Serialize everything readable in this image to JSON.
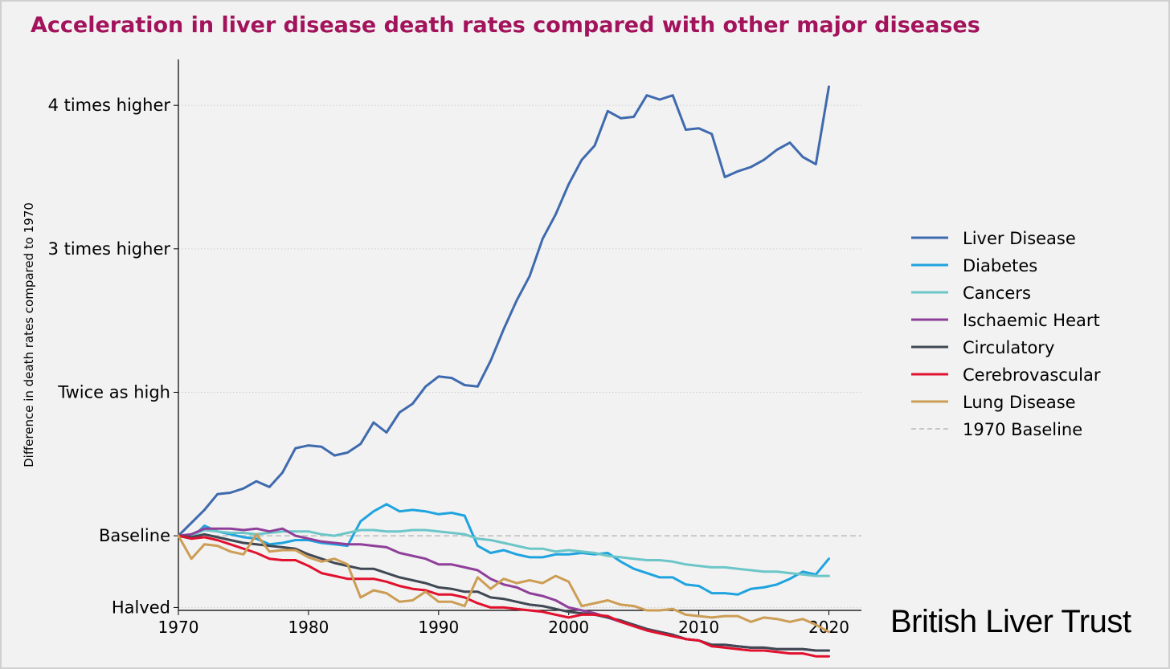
{
  "chart_data": {
    "type": "line",
    "title": "Acceleration in liver disease death rates compared with other major diseases",
    "ylabel": "Difference in death rates compared to 1970",
    "xlabel": "",
    "xlim": [
      1970,
      2022.5
    ],
    "ylim": [
      0.48,
      4.32
    ],
    "grid": "horizontal dotted",
    "legend_position": "right",
    "x_ticks": [
      1970,
      1980,
      1990,
      2000,
      2010,
      2020
    ],
    "y_ticks": [
      {
        "value": 0.5,
        "label": "Halved"
      },
      {
        "value": 1,
        "label": "Baseline"
      },
      {
        "value": 2,
        "label": "Twice as high"
      },
      {
        "value": 3,
        "label": "3 times higher"
      },
      {
        "value": 4,
        "label": "4 times higher"
      }
    ],
    "baseline": {
      "name": "1970 Baseline",
      "value": 1,
      "color": "#c8c8c8"
    },
    "x": [
      1970,
      1971,
      1972,
      1973,
      1974,
      1975,
      1976,
      1977,
      1978,
      1979,
      1980,
      1981,
      1982,
      1983,
      1984,
      1985,
      1986,
      1987,
      1988,
      1989,
      1990,
      1991,
      1992,
      1993,
      1994,
      1995,
      1996,
      1997,
      1998,
      1999,
      2000,
      2001,
      2002,
      2003,
      2004,
      2005,
      2006,
      2007,
      2008,
      2009,
      2010,
      2011,
      2012,
      2013,
      2014,
      2015,
      2016,
      2017,
      2018,
      2019,
      2020
    ],
    "series": [
      {
        "name": "Liver Disease",
        "color": "#3f6aae",
        "values": [
          1.0,
          1.09,
          1.18,
          1.29,
          1.3,
          1.33,
          1.38,
          1.34,
          1.44,
          1.61,
          1.63,
          1.62,
          1.56,
          1.58,
          1.64,
          1.79,
          1.72,
          1.86,
          1.92,
          2.04,
          2.11,
          2.1,
          2.05,
          2.04,
          2.22,
          2.44,
          2.64,
          2.81,
          3.07,
          3.24,
          3.45,
          3.62,
          3.72,
          3.96,
          3.91,
          3.92,
          4.07,
          4.04,
          4.07,
          3.83,
          3.84,
          3.8,
          3.5,
          3.54,
          3.57,
          3.62,
          3.69,
          3.74,
          3.64,
          3.59,
          4.13
        ]
      },
      {
        "name": "Diabetes",
        "color": "#1fa3df",
        "values": [
          1.0,
          0.98,
          1.07,
          1.03,
          1.01,
          0.99,
          0.98,
          0.94,
          0.95,
          0.97,
          0.97,
          0.95,
          0.94,
          0.93,
          1.1,
          1.17,
          1.22,
          1.17,
          1.18,
          1.17,
          1.15,
          1.16,
          1.14,
          0.93,
          0.88,
          0.9,
          0.87,
          0.85,
          0.85,
          0.87,
          0.87,
          0.88,
          0.87,
          0.88,
          0.82,
          0.77,
          0.74,
          0.71,
          0.71,
          0.66,
          0.65,
          0.6,
          0.6,
          0.59,
          0.63,
          0.64,
          0.66,
          0.7,
          0.75,
          0.73,
          0.84
        ]
      },
      {
        "name": "Cancers",
        "color": "#6cc6c8",
        "values": [
          1.0,
          1.0,
          1.04,
          1.03,
          1.02,
          1.02,
          1.01,
          1.02,
          1.03,
          1.03,
          1.03,
          1.01,
          1.0,
          1.02,
          1.04,
          1.04,
          1.03,
          1.03,
          1.04,
          1.04,
          1.03,
          1.02,
          1.01,
          0.98,
          0.97,
          0.95,
          0.93,
          0.91,
          0.91,
          0.89,
          0.9,
          0.89,
          0.88,
          0.86,
          0.85,
          0.84,
          0.83,
          0.83,
          0.82,
          0.8,
          0.79,
          0.78,
          0.78,
          0.77,
          0.76,
          0.75,
          0.75,
          0.74,
          0.73,
          0.72,
          0.72
        ]
      },
      {
        "name": "Ischaemic Heart",
        "color": "#8f3f99",
        "values": [
          1.0,
          1.01,
          1.05,
          1.05,
          1.05,
          1.04,
          1.05,
          1.03,
          1.05,
          1.0,
          0.98,
          0.96,
          0.95,
          0.94,
          0.94,
          0.93,
          0.92,
          0.88,
          0.86,
          0.84,
          0.8,
          0.8,
          0.78,
          0.76,
          0.7,
          0.66,
          0.64,
          0.6,
          0.58,
          0.55,
          0.5,
          0.48,
          0.46,
          0.43,
          0.4,
          0.38,
          0.35,
          0.33,
          0.31,
          0.28,
          0.27,
          0.24,
          0.24,
          0.23,
          0.22,
          0.22,
          0.21,
          0.21,
          0.21,
          0.2,
          0.2
        ]
      },
      {
        "name": "Circulatory",
        "color": "#404854",
        "values": [
          1.0,
          0.99,
          1.01,
          0.99,
          0.97,
          0.95,
          0.94,
          0.93,
          0.92,
          0.91,
          0.87,
          0.84,
          0.81,
          0.79,
          0.77,
          0.77,
          0.74,
          0.71,
          0.69,
          0.67,
          0.64,
          0.63,
          0.61,
          0.61,
          0.57,
          0.56,
          0.54,
          0.52,
          0.51,
          0.49,
          0.47,
          0.46,
          0.45,
          0.43,
          0.41,
          0.38,
          0.35,
          0.33,
          0.31,
          0.28,
          0.27,
          0.24,
          0.24,
          0.23,
          0.22,
          0.22,
          0.21,
          0.21,
          0.21,
          0.2,
          0.2
        ]
      },
      {
        "name": "Cerebrovascular",
        "color": "#e1112e",
        "values": [
          1.0,
          0.98,
          0.99,
          0.97,
          0.94,
          0.91,
          0.88,
          0.84,
          0.83,
          0.83,
          0.79,
          0.74,
          0.72,
          0.7,
          0.7,
          0.7,
          0.68,
          0.65,
          0.63,
          0.62,
          0.59,
          0.59,
          0.57,
          0.53,
          0.5,
          0.5,
          0.49,
          0.48,
          0.47,
          0.45,
          0.43,
          0.45,
          0.45,
          0.44,
          0.4,
          0.37,
          0.34,
          0.32,
          0.3,
          0.28,
          0.27,
          0.23,
          0.22,
          0.21,
          0.2,
          0.2,
          0.19,
          0.18,
          0.18,
          0.16,
          0.16
        ]
      },
      {
        "name": "Lung Disease",
        "color": "#cc9d54",
        "values": [
          1.0,
          0.84,
          0.94,
          0.93,
          0.89,
          0.87,
          1.01,
          0.89,
          0.9,
          0.9,
          0.85,
          0.82,
          0.84,
          0.8,
          0.57,
          0.62,
          0.6,
          0.54,
          0.55,
          0.61,
          0.54,
          0.54,
          0.51,
          0.71,
          0.63,
          0.7,
          0.67,
          0.69,
          0.67,
          0.72,
          0.68,
          0.51,
          0.53,
          0.55,
          0.52,
          0.51,
          0.48,
          0.48,
          0.49,
          0.45,
          0.44,
          0.43,
          0.44,
          0.44,
          0.4,
          0.43,
          0.42,
          0.4,
          0.42,
          0.38,
          0.33
        ]
      }
    ]
  },
  "brand": {
    "text": "British Liver Trust"
  }
}
